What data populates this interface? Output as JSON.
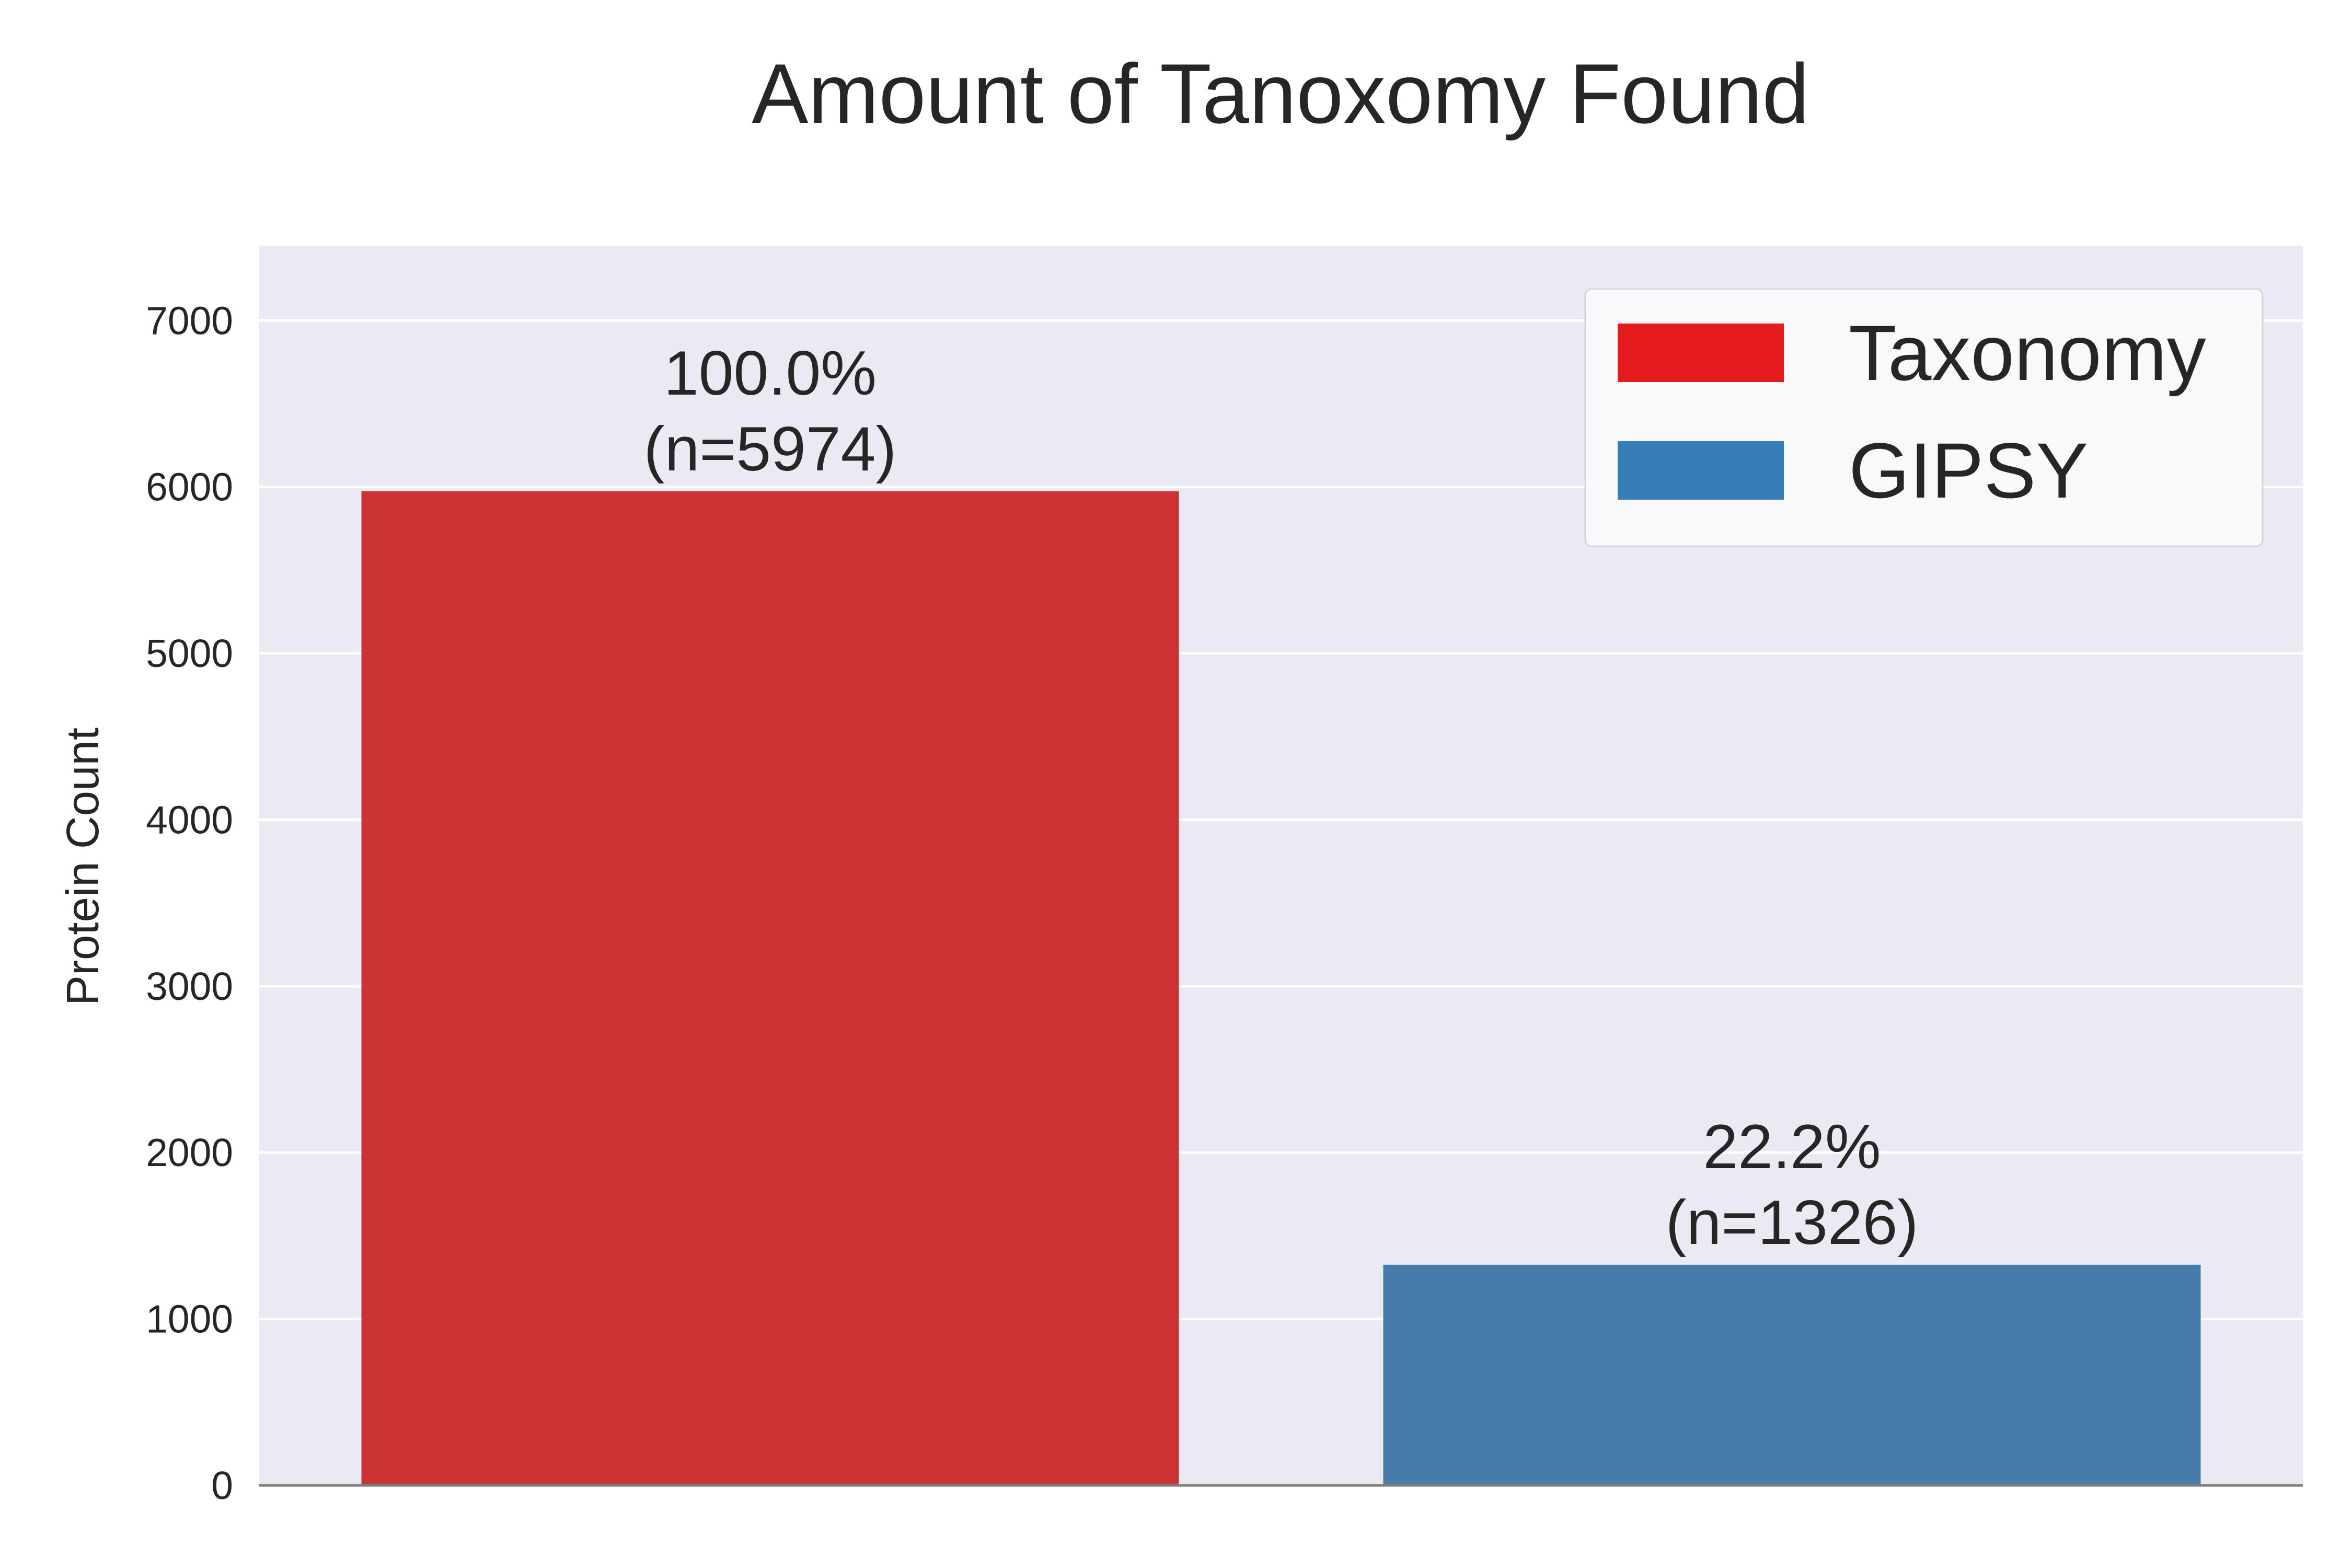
{
  "chart_data": {
    "type": "bar",
    "title": "Amount of Tanoxomy Found",
    "xlabel": "",
    "ylabel": "Protein Count",
    "ylim": [
      0,
      7450
    ],
    "yticks": [
      0,
      1000,
      2000,
      3000,
      4000,
      5000,
      6000,
      7000
    ],
    "grid": true,
    "legend_position": "top-right",
    "categories": [
      "Taxonomy",
      "GIPSY"
    ],
    "values": [
      5974,
      1326
    ],
    "bar_labels": [
      {
        "percent": "100.0%",
        "count": "(n=5974)"
      },
      {
        "percent": "22.2%",
        "count": "(n=1326)"
      }
    ],
    "legend": [
      {
        "name": "Taxonomy",
        "color": "#e41a1c"
      },
      {
        "name": "GIPSY",
        "color": "#377eb8"
      }
    ],
    "bar_colors": [
      "#cb3335",
      "#477ca8"
    ],
    "background_color": "#eaeaf2"
  }
}
